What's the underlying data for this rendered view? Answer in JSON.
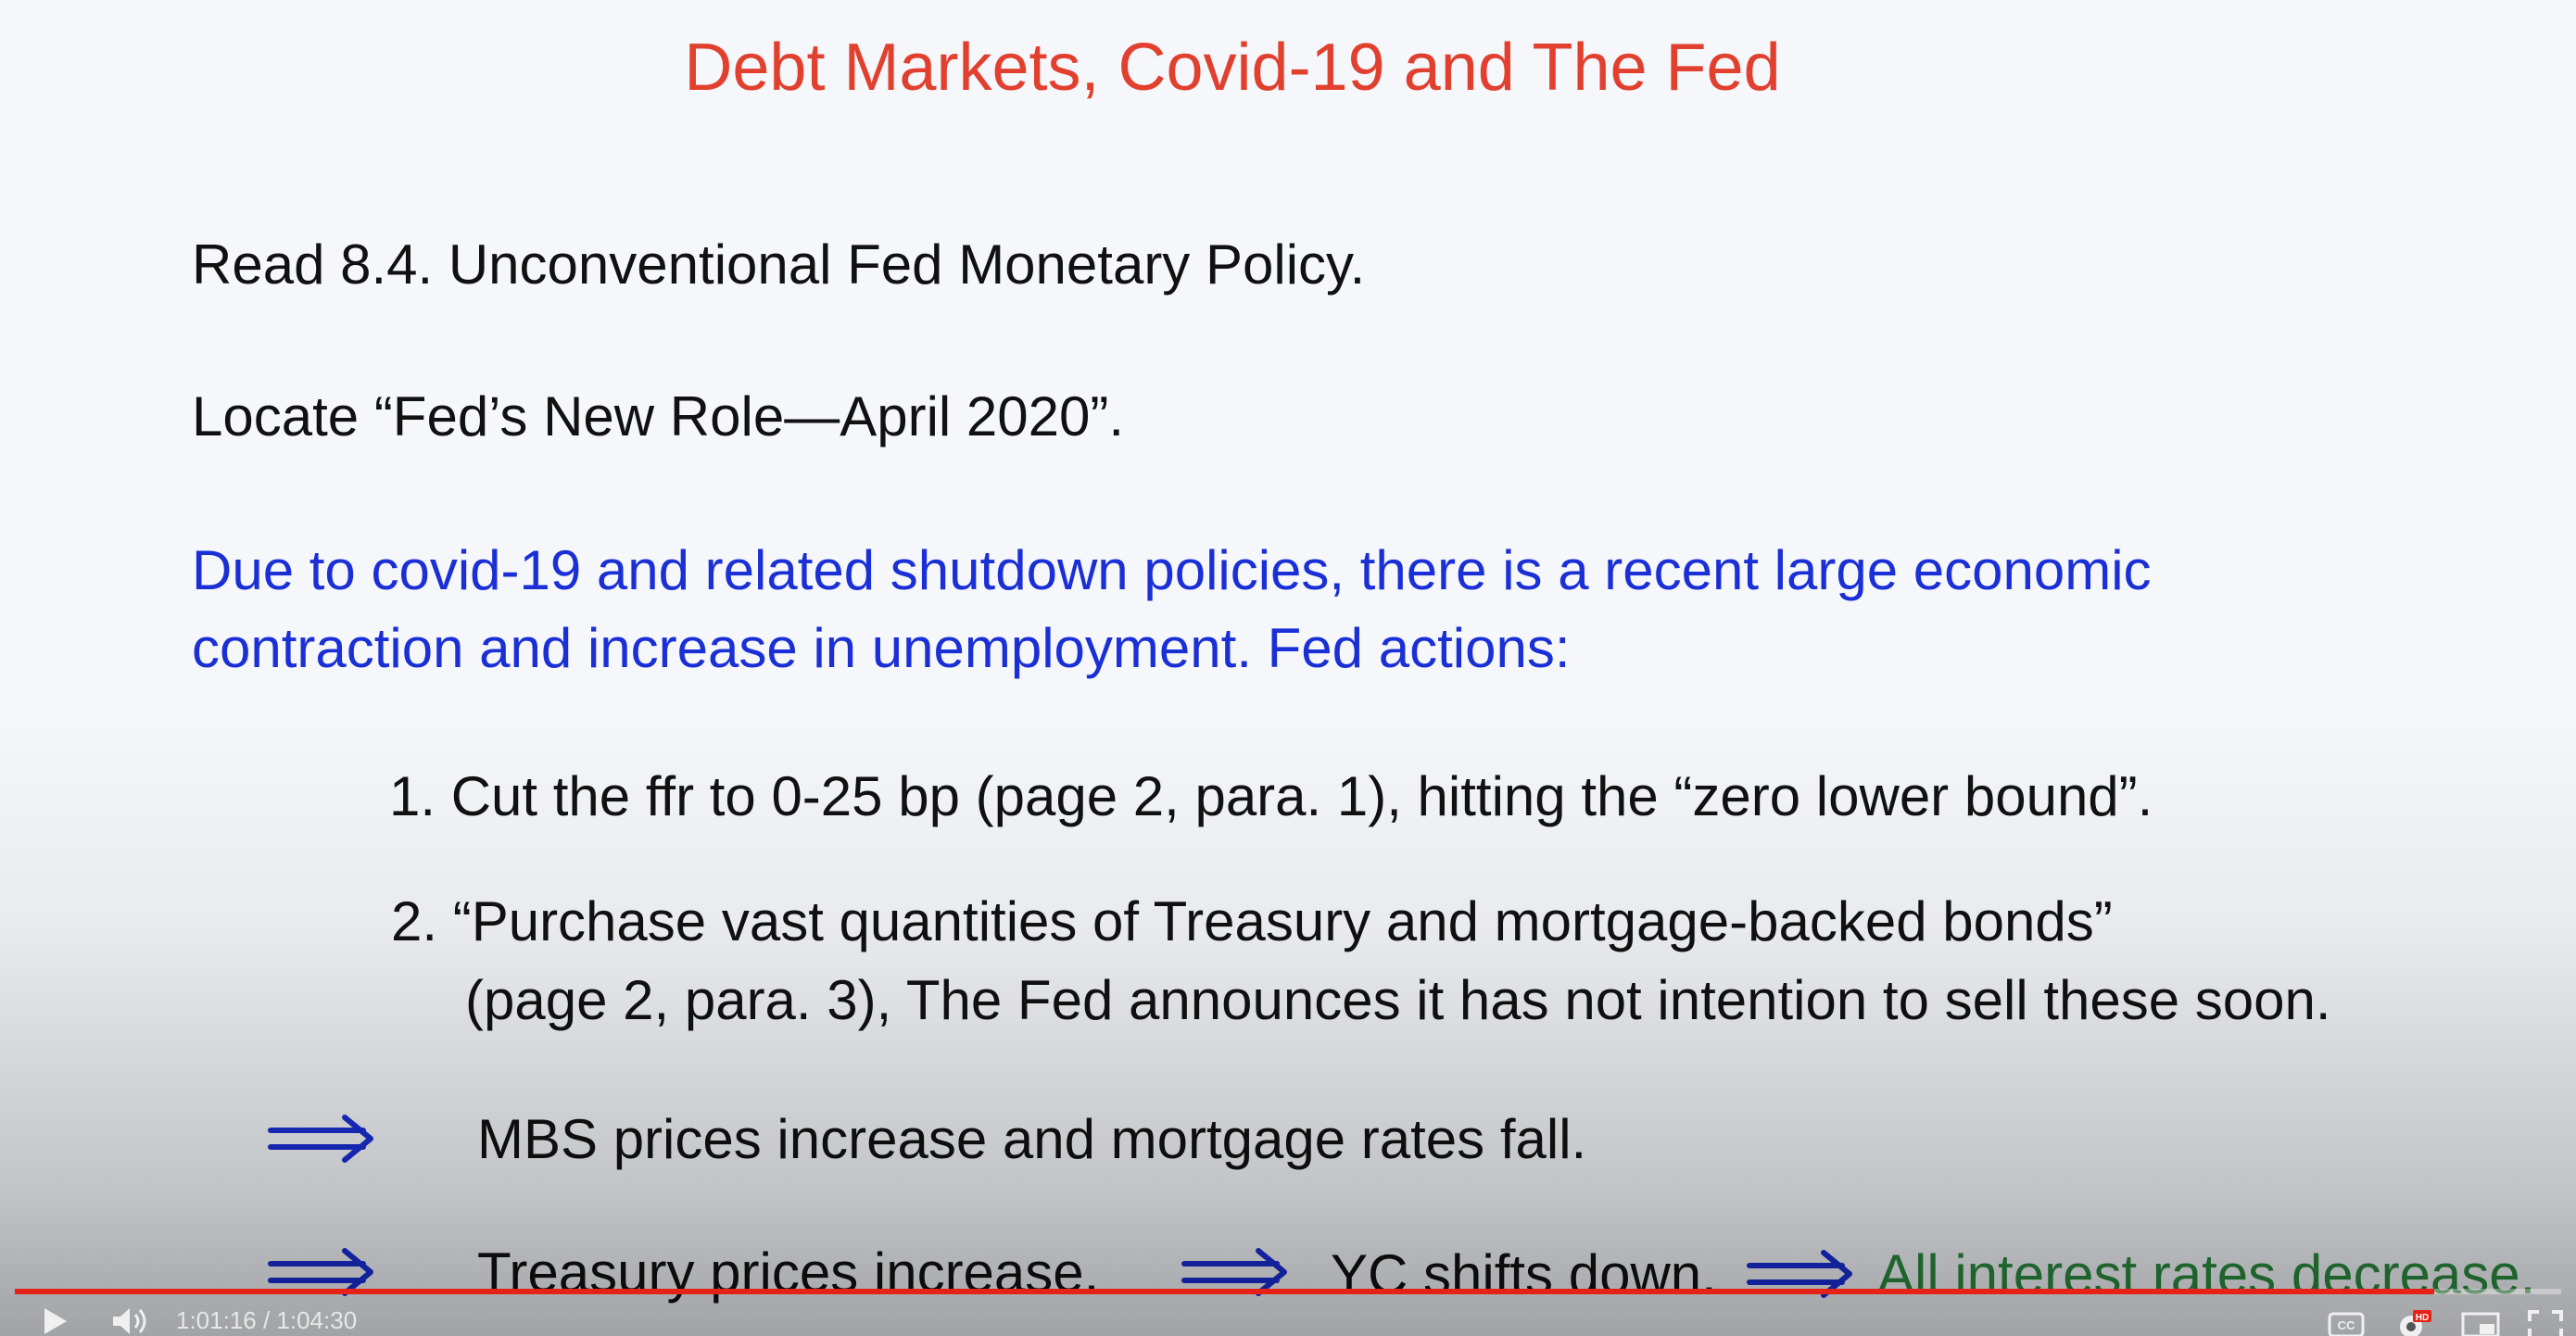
{
  "slide": {
    "title": "Debt Markets, Covid-19 and The Fed",
    "read": "Read 8.4. Unconventional Fed Monetary Policy.",
    "locate": "Locate “Fed’s New Role—April 2020”.",
    "intro_line1": "Due to covid-19 and related shutdown policies, there is a recent large economic",
    "intro_line2": "contraction and increase in unemployment.  Fed actions:",
    "item1": "1.  Cut the ffr to 0-25 bp (page 2, para. 1), hitting the “zero lower bound”.",
    "item2_line1": "2. “Purchase vast quantities of Treasury and mortgage-backed bonds”",
    "item2_line2": "(page 2, para. 3),  The Fed announces it has not intention to sell these soon.",
    "implication1": "MBS prices increase and mortgage rates fall.",
    "implication2_a": "Treasury prices increase.",
    "implication2_b": "YC shifts down.",
    "implication2_c": "All interest rates decrease."
  },
  "player": {
    "current_time": "1:01:16",
    "duration": "1:04:30",
    "time_display": "1:01:16 / 1:04:30",
    "progress_fraction": 0.95,
    "quality_badge": "HD",
    "captions_label": "CC",
    "accent_color": "#e62117",
    "icons": [
      "play-icon",
      "volume-icon",
      "captions-icon",
      "settings-icon",
      "miniplayer-icon",
      "fullscreen-icon"
    ]
  },
  "colors": {
    "title": "#e2402f",
    "body": "#111111",
    "intro": "#1a2fd6",
    "conclusion": "#2b8a3e"
  }
}
